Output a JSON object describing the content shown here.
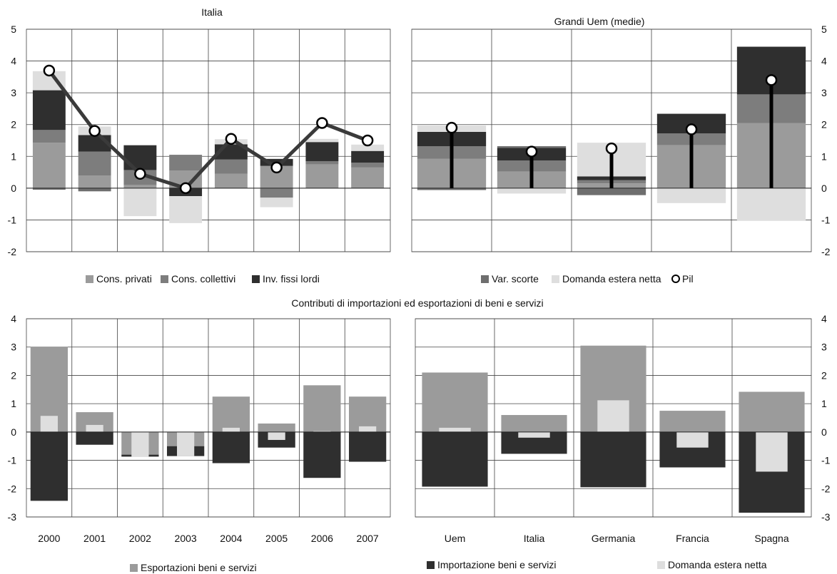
{
  "colors": {
    "cons_privati": "#9b9b9b",
    "cons_collettivi": "#7d7d7d",
    "inv_fissi": "#2f2f2f",
    "var_scorte": "#6e6e6e",
    "domanda_estera": "#dedede",
    "pil": "#000000",
    "pil_line": "#3a3a3a",
    "esportazioni": "#9b9b9b",
    "importazioni": "#2f2f2f",
    "grid": "#444444"
  },
  "section_title_bottom": "Contributi di importazioni ed esportazioni di beni e servizi",
  "legend_top": [
    {
      "key": "cons_privati",
      "label": "Cons. privati",
      "marker": "square"
    },
    {
      "key": "cons_collettivi",
      "label": "Cons. collettivi",
      "marker": "square"
    },
    {
      "key": "inv_fissi",
      "label": "Inv. fissi lordi",
      "marker": "square"
    },
    {
      "key": "var_scorte",
      "label": "Var. scorte",
      "marker": "square"
    },
    {
      "key": "domanda_estera",
      "label": "Domanda estera netta",
      "marker": "square"
    },
    {
      "key": "pil",
      "label": "Pil",
      "marker": "circle"
    }
  ],
  "legend_bottom": [
    {
      "key": "esportazioni",
      "label": "Esportazioni beni e servizi"
    },
    {
      "key": "importazioni",
      "label": "Importazione beni e servizi"
    },
    {
      "key": "domanda_estera",
      "label": "Domanda estera netta"
    }
  ],
  "chart_data": [
    {
      "type": "bar",
      "title": "Italia",
      "categories": [
        "2000",
        "2001",
        "2002",
        "2003",
        "2004",
        "2005",
        "2006",
        "2007"
      ],
      "show_category_labels": false,
      "ylim": [
        -2,
        5
      ],
      "yticks": [
        "5",
        "4",
        "3",
        "2",
        "1",
        "0",
        "-1",
        "-2"
      ],
      "grid": true,
      "stacked": true,
      "series": [
        {
          "name": "Cons. privati",
          "values": [
            1.43,
            0.4,
            0.1,
            0.55,
            0.45,
            0.7,
            0.75,
            0.65
          ]
        },
        {
          "name": "Cons. collettivi",
          "values": [
            0.4,
            0.75,
            0.47,
            0.5,
            0.45,
            -0.3,
            0.1,
            0.15
          ]
        },
        {
          "name": "Inv. fissi lordi",
          "values": [
            1.25,
            0.52,
            0.78,
            -0.25,
            0.48,
            0.22,
            0.6,
            0.37
          ]
        },
        {
          "name": "Var. scorte",
          "values": [
            -0.05,
            -0.1,
            0,
            0,
            0,
            0,
            0,
            0
          ]
        },
        {
          "name": "Domanda estera netta",
          "values": [
            0.6,
            0.27,
            -0.88,
            -0.85,
            0.16,
            -0.3,
            0.1,
            0.2
          ]
        }
      ],
      "line": {
        "name": "Pil",
        "values": [
          3.7,
          1.8,
          0.45,
          0.0,
          1.55,
          0.65,
          2.05,
          1.5
        ]
      }
    },
    {
      "type": "bar",
      "title": "Grandi Uem (medie)",
      "categories": [
        "Uem",
        "Italia",
        "Germania",
        "Francia",
        "Spagna"
      ],
      "show_category_labels": false,
      "ylim": [
        -2,
        5
      ],
      "yticks": [
        "5",
        "4",
        "3",
        "2",
        "1",
        "0",
        "-1",
        "-2"
      ],
      "grid": true,
      "stacked": true,
      "series": [
        {
          "name": "Cons. privati",
          "values": [
            0.92,
            0.52,
            0.15,
            1.35,
            2.05
          ]
        },
        {
          "name": "Cons. collettivi",
          "values": [
            0.4,
            0.35,
            0.1,
            0.37,
            0.9
          ]
        },
        {
          "name": "Inv. fissi lordi",
          "values": [
            0.45,
            0.4,
            0.12,
            0.62,
            1.5
          ]
        },
        {
          "name": "Var. scorte",
          "values": [
            -0.06,
            0.05,
            -0.22,
            0,
            0
          ]
        },
        {
          "name": "Domanda estera netta",
          "values": [
            0.2,
            -0.17,
            1.06,
            -0.47,
            -1.03
          ]
        }
      ],
      "pil_sticks": {
        "name": "Pil",
        "values": [
          1.9,
          1.15,
          1.25,
          1.85,
          3.4
        ]
      }
    },
    {
      "type": "bar",
      "title": "",
      "categories": [
        "2000",
        "2001",
        "2002",
        "2003",
        "2004",
        "2005",
        "2006",
        "2007"
      ],
      "ylim": [
        -3,
        4
      ],
      "yticks": [
        "4",
        "3",
        "2",
        "1",
        "0",
        "-1",
        "-2",
        "-3"
      ],
      "grid": true,
      "series": [
        {
          "name": "Esportazioni beni e servizi",
          "values": [
            3.0,
            0.7,
            -0.8,
            -0.5,
            1.25,
            0.3,
            1.65,
            1.25
          ]
        },
        {
          "name": "Importazione beni e servizi",
          "values": [
            -2.43,
            -0.45,
            -0.07,
            -0.35,
            -1.1,
            -0.55,
            -1.62,
            -1.05
          ]
        },
        {
          "name": "Domanda estera netta",
          "values": [
            0.57,
            0.25,
            -0.87,
            -0.85,
            0.15,
            -0.28,
            0.03,
            0.2
          ]
        }
      ]
    },
    {
      "type": "bar",
      "title": "",
      "categories": [
        "Uem",
        "Italia",
        "Germania",
        "Francia",
        "Spagna"
      ],
      "ylim": [
        -3,
        4
      ],
      "yticks": [
        "4",
        "3",
        "2",
        "1",
        "0",
        "-1",
        "-2",
        "-3"
      ],
      "grid": true,
      "series": [
        {
          "name": "Esportazioni beni e servizi",
          "values": [
            2.1,
            0.6,
            3.05,
            0.75,
            1.42
          ]
        },
        {
          "name": "Importazione beni e servizi",
          "values": [
            -1.93,
            -0.77,
            -1.95,
            -1.25,
            -2.85
          ]
        },
        {
          "name": "Domanda estera netta",
          "values": [
            0.15,
            -0.2,
            1.12,
            -0.55,
            -1.4
          ]
        }
      ]
    }
  ]
}
